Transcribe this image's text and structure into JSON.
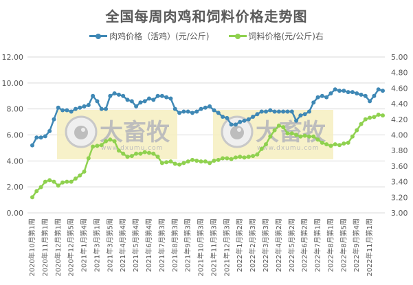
{
  "title": "全国每周肉鸡和饲料价格走势图",
  "legend": [
    {
      "label": "肉鸡价格（活鸡）(元/公斤)",
      "color": "#3f88b5"
    },
    {
      "label": "饲料价格(元/公斤)右",
      "color": "#8fd14f"
    }
  ],
  "watermark": {
    "text": "大畜牧",
    "url": "www.dxumu.com"
  },
  "chart_data": {
    "type": "line",
    "title": "全国每周肉鸡和饲料价格走势图",
    "xlabel": "",
    "ylabel": "",
    "y_left": {
      "min": 0,
      "max": 12,
      "step": 2,
      "ticks": [
        "0.00",
        "2.00",
        "4.00",
        "6.00",
        "8.00",
        "10.00",
        "12.00"
      ]
    },
    "y_right": {
      "min": 3.0,
      "max": 5.0,
      "step": 0.2,
      "ticks": [
        "3.00",
        "3.20",
        "3.40",
        "3.60",
        "3.80",
        "4.00",
        "4.20",
        "4.40",
        "4.60",
        "4.80",
        "5.00"
      ]
    },
    "grid": true,
    "legend_position": "top",
    "x_tick_labels": [
      "2020年10月第1周",
      "2020年11月第1周",
      "2020年12月第1周",
      "2020年12月第5周",
      "2021年1月第4周",
      "2021年3月第1周",
      "2021年3月第5周",
      "2021年4月第4周",
      "2021年5月第4周",
      "2021年6月第4周",
      "2021年7月第3周",
      "2021年8月第3周",
      "2021年9月第3周",
      "2021年10月第3周",
      "2021年11月第3周",
      "2021年12月第3周",
      "2022年1月第2周",
      "2022年2月第3周",
      "2022年3月第3周",
      "2022年4月第2周",
      "2022年5月第2周",
      "2022年6月第2周",
      "2022年7月第1周",
      "2022年8月第1周",
      "2022年8月第5周",
      "2022年9月第4周",
      "2022年11月第1周"
    ],
    "x_tick_every": 3,
    "series": [
      {
        "name": "肉鸡价格（活鸡）(元/公斤)",
        "axis": "left",
        "color": "#3f88b5",
        "values": [
          5.2,
          5.8,
          5.8,
          5.9,
          6.3,
          7.2,
          8.1,
          7.9,
          7.9,
          7.8,
          8.0,
          8.1,
          8.2,
          8.3,
          9.0,
          8.6,
          8.0,
          8.0,
          9.0,
          9.2,
          9.1,
          9.0,
          8.7,
          8.6,
          8.2,
          8.5,
          8.6,
          8.8,
          8.7,
          9.0,
          9.0,
          8.9,
          8.8,
          8.0,
          7.7,
          7.8,
          7.8,
          7.7,
          7.8,
          8.0,
          8.1,
          8.2,
          7.9,
          7.7,
          7.4,
          7.3,
          6.8,
          6.8,
          7.0,
          7.1,
          7.2,
          7.4,
          7.6,
          7.8,
          7.8,
          7.9,
          7.8,
          7.8,
          7.8,
          7.8,
          7.8,
          7.1,
          7.5,
          7.6,
          7.8,
          8.5,
          8.9,
          9.0,
          8.9,
          9.2,
          9.5,
          9.4,
          9.4,
          9.3,
          9.3,
          9.2,
          9.1,
          9.0,
          8.6,
          9.0,
          9.5,
          9.4
        ]
      },
      {
        "name": "饲料价格(元/公斤)右",
        "axis": "right",
        "color": "#8fd14f",
        "values": [
          3.2,
          3.28,
          3.33,
          3.4,
          3.42,
          3.4,
          3.35,
          3.39,
          3.4,
          3.4,
          3.44,
          3.48,
          3.53,
          3.7,
          3.85,
          3.86,
          3.87,
          3.92,
          3.94,
          3.92,
          3.8,
          3.76,
          3.72,
          3.73,
          3.76,
          3.76,
          3.78,
          3.77,
          3.76,
          3.72,
          3.64,
          3.65,
          3.66,
          3.63,
          3.62,
          3.64,
          3.66,
          3.68,
          3.67,
          3.66,
          3.66,
          3.64,
          3.67,
          3.68,
          3.7,
          3.7,
          3.69,
          3.71,
          3.72,
          3.71,
          3.72,
          3.73,
          3.75,
          3.82,
          3.88,
          3.98,
          4.06,
          4.12,
          4.1,
          4.02,
          4.02,
          4.0,
          3.98,
          3.99,
          3.98,
          3.98,
          3.94,
          3.9,
          3.88,
          3.86,
          3.88,
          3.87,
          3.89,
          3.9,
          3.98,
          4.06,
          4.14,
          4.2,
          4.22,
          4.23,
          4.26,
          4.25
        ]
      }
    ]
  }
}
